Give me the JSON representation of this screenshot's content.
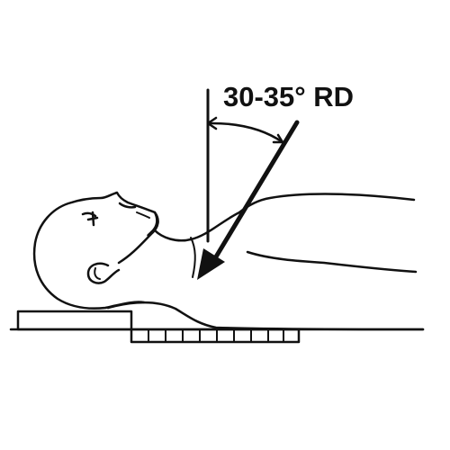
{
  "diagram": {
    "angle_label": "30-35° RD",
    "colors": {
      "ink": "#111111",
      "background": "#ffffff"
    },
    "icons": {
      "figure": "supine-patient-figure",
      "pointer": "arrow-pointer-icon"
    }
  }
}
